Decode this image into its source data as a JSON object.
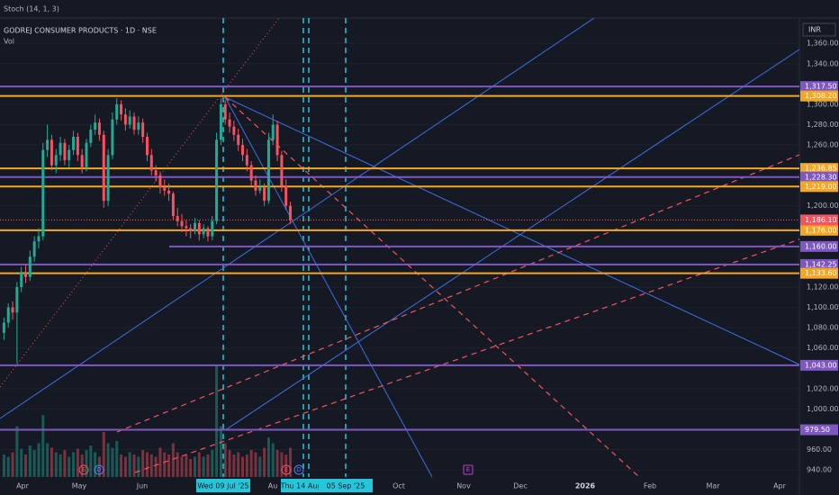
{
  "chart_data": {
    "type": "candlestick",
    "indicator": "Stoch (14, 1, 3)",
    "title": "GODREJ CONSUMER PRODUCTS · 1D · NSE",
    "volume_label": "Vol",
    "currency": "INR",
    "ylim": [
      933,
      1385
    ],
    "yticks": [
      {
        "value": 1360,
        "label": "1,360.00"
      },
      {
        "value": 1340,
        "label": "1,340.00"
      },
      {
        "value": 1300,
        "label": "1,300.00"
      },
      {
        "value": 1280,
        "label": "1,280.00"
      },
      {
        "value": 1260,
        "label": "1,260.00"
      },
      {
        "value": 1200,
        "label": "1,200.00"
      },
      {
        "value": 1120,
        "label": "1,120.00"
      },
      {
        "value": 1100,
        "label": "1,100.00"
      },
      {
        "value": 1080,
        "label": "1,080.00"
      },
      {
        "value": 1060,
        "label": "1,060.00"
      },
      {
        "value": 1020,
        "label": "1,020.00"
      },
      {
        "value": 1000,
        "label": "1,000.00"
      },
      {
        "value": 960,
        "label": "960.00"
      },
      {
        "value": 940,
        "label": "940.00"
      }
    ],
    "grid": true,
    "up_color": "#22ab94",
    "down_color": "#f7525f",
    "candles": [
      [
        1075,
        1090,
        1068,
        1085
      ],
      [
        1085,
        1104,
        1080,
        1100
      ],
      [
        1100,
        1106,
        1088,
        1095
      ],
      [
        1095,
        1125,
        1045,
        1120
      ],
      [
        1120,
        1140,
        1115,
        1135
      ],
      [
        1135,
        1142,
        1124,
        1130
      ],
      [
        1130,
        1156,
        1126,
        1150
      ],
      [
        1150,
        1170,
        1145,
        1165
      ],
      [
        1165,
        1178,
        1158,
        1170
      ],
      [
        1170,
        1262,
        1166,
        1255
      ],
      [
        1255,
        1280,
        1248,
        1265
      ],
      [
        1265,
        1270,
        1235,
        1240
      ],
      [
        1240,
        1256,
        1232,
        1250
      ],
      [
        1250,
        1268,
        1244,
        1262
      ],
      [
        1262,
        1266,
        1240,
        1245
      ],
      [
        1245,
        1260,
        1238,
        1255
      ],
      [
        1255,
        1274,
        1250,
        1268
      ],
      [
        1268,
        1272,
        1244,
        1250
      ],
      [
        1250,
        1256,
        1232,
        1238
      ],
      [
        1238,
        1266,
        1234,
        1262
      ],
      [
        1262,
        1280,
        1258,
        1275
      ],
      [
        1275,
        1290,
        1270,
        1282
      ],
      [
        1282,
        1286,
        1264,
        1270
      ],
      [
        1270,
        1274,
        1198,
        1205
      ],
      [
        1205,
        1256,
        1200,
        1250
      ],
      [
        1250,
        1292,
        1246,
        1285
      ],
      [
        1285,
        1306,
        1280,
        1300
      ],
      [
        1300,
        1304,
        1284,
        1290
      ],
      [
        1290,
        1296,
        1274,
        1280
      ],
      [
        1280,
        1294,
        1276,
        1288
      ],
      [
        1288,
        1292,
        1270,
        1275
      ],
      [
        1275,
        1288,
        1270,
        1282
      ],
      [
        1282,
        1286,
        1262,
        1268
      ],
      [
        1268,
        1272,
        1244,
        1250
      ],
      [
        1250,
        1256,
        1230,
        1235
      ],
      [
        1235,
        1240,
        1224,
        1230
      ],
      [
        1230,
        1234,
        1212,
        1218
      ],
      [
        1218,
        1226,
        1210,
        1215
      ],
      [
        1215,
        1222,
        1205,
        1212
      ],
      [
        1212,
        1214,
        1186,
        1190
      ],
      [
        1190,
        1198,
        1180,
        1185
      ],
      [
        1185,
        1192,
        1174,
        1180
      ],
      [
        1180,
        1186,
        1170,
        1178
      ],
      [
        1178,
        1182,
        1168,
        1175
      ],
      [
        1175,
        1188,
        1172,
        1183
      ],
      [
        1183,
        1186,
        1166,
        1172
      ],
      [
        1172,
        1182,
        1168,
        1178
      ],
      [
        1178,
        1180,
        1165,
        1170
      ],
      [
        1170,
        1190,
        1166,
        1185
      ],
      [
        1185,
        1272,
        1182,
        1265
      ],
      [
        1265,
        1306,
        1260,
        1300
      ],
      [
        1300,
        1304,
        1280,
        1285
      ],
      [
        1285,
        1292,
        1272,
        1278
      ],
      [
        1278,
        1284,
        1264,
        1270
      ],
      [
        1270,
        1276,
        1254,
        1260
      ],
      [
        1260,
        1266,
        1244,
        1250
      ],
      [
        1250,
        1256,
        1234,
        1240
      ],
      [
        1240,
        1244,
        1220,
        1225
      ],
      [
        1225,
        1230,
        1210,
        1215
      ],
      [
        1215,
        1226,
        1212,
        1218
      ],
      [
        1218,
        1222,
        1200,
        1205
      ],
      [
        1205,
        1272,
        1202,
        1265
      ],
      [
        1265,
        1290,
        1260,
        1280
      ],
      [
        1280,
        1284,
        1244,
        1250
      ],
      [
        1250,
        1254,
        1214,
        1220
      ],
      [
        1220,
        1226,
        1196,
        1200
      ],
      [
        1200,
        1204,
        1182,
        1186
      ]
    ],
    "volume": [
      20,
      18,
      22,
      45,
      25,
      20,
      28,
      24,
      30,
      55,
      30,
      26,
      22,
      20,
      24,
      18,
      22,
      25,
      20,
      24,
      28,
      22,
      18,
      40,
      30,
      26,
      32,
      20,
      18,
      22,
      20,
      18,
      24,
      22,
      20,
      18,
      26,
      22,
      20,
      30,
      22,
      18,
      20,
      16,
      18,
      22,
      18,
      20,
      24,
      100,
      45,
      30,
      24,
      20,
      22,
      18,
      20,
      24,
      22,
      18,
      26,
      35,
      30,
      24,
      22,
      20,
      26
    ],
    "levels": [
      {
        "value": 1317.5,
        "label": "1,317.50",
        "color": "#7e57c2"
      },
      {
        "value": 1308.2,
        "label": "1,308.20",
        "color": "#f5a623"
      },
      {
        "value": 1236.85,
        "label": "1,236.85",
        "color": "#f5a623"
      },
      {
        "value": 1228.3,
        "label": "1,228.30",
        "color": "#7e57c2"
      },
      {
        "value": 1219,
        "label": "1,219.00",
        "color": "#f5a623"
      },
      {
        "value": 1176,
        "label": "1,176.00",
        "color": "#f5a623"
      },
      {
        "value": 1160,
        "label": "1,160.00",
        "color": "#7e57c2"
      },
      {
        "value": 1142.25,
        "label": "1,142.25",
        "color": "#7e57c2"
      },
      {
        "value": 1133.6,
        "label": "1,133.60",
        "color": "#f5a623"
      },
      {
        "value": 1043,
        "label": "1,043.00",
        "color": "#7e57c2"
      },
      {
        "value": 979.5,
        "label": "979.50",
        "color": "#7e57c2"
      }
    ],
    "last_price": {
      "value": 1186.1,
      "label": "1,186.10",
      "color": "#f7525f"
    },
    "x_labels": [
      "Apr",
      "May",
      "Jun",
      "Wed 09 Jul '25",
      "Au",
      "Thu 14 Aug '25",
      "05 Sep '25",
      "Oct",
      "Nov",
      "Dec",
      "2026",
      "Feb",
      "Mar",
      "Apr"
    ],
    "highlight": [
      3,
      5,
      6
    ],
    "events": [
      "E",
      "D",
      "E",
      "D",
      "E"
    ]
  }
}
